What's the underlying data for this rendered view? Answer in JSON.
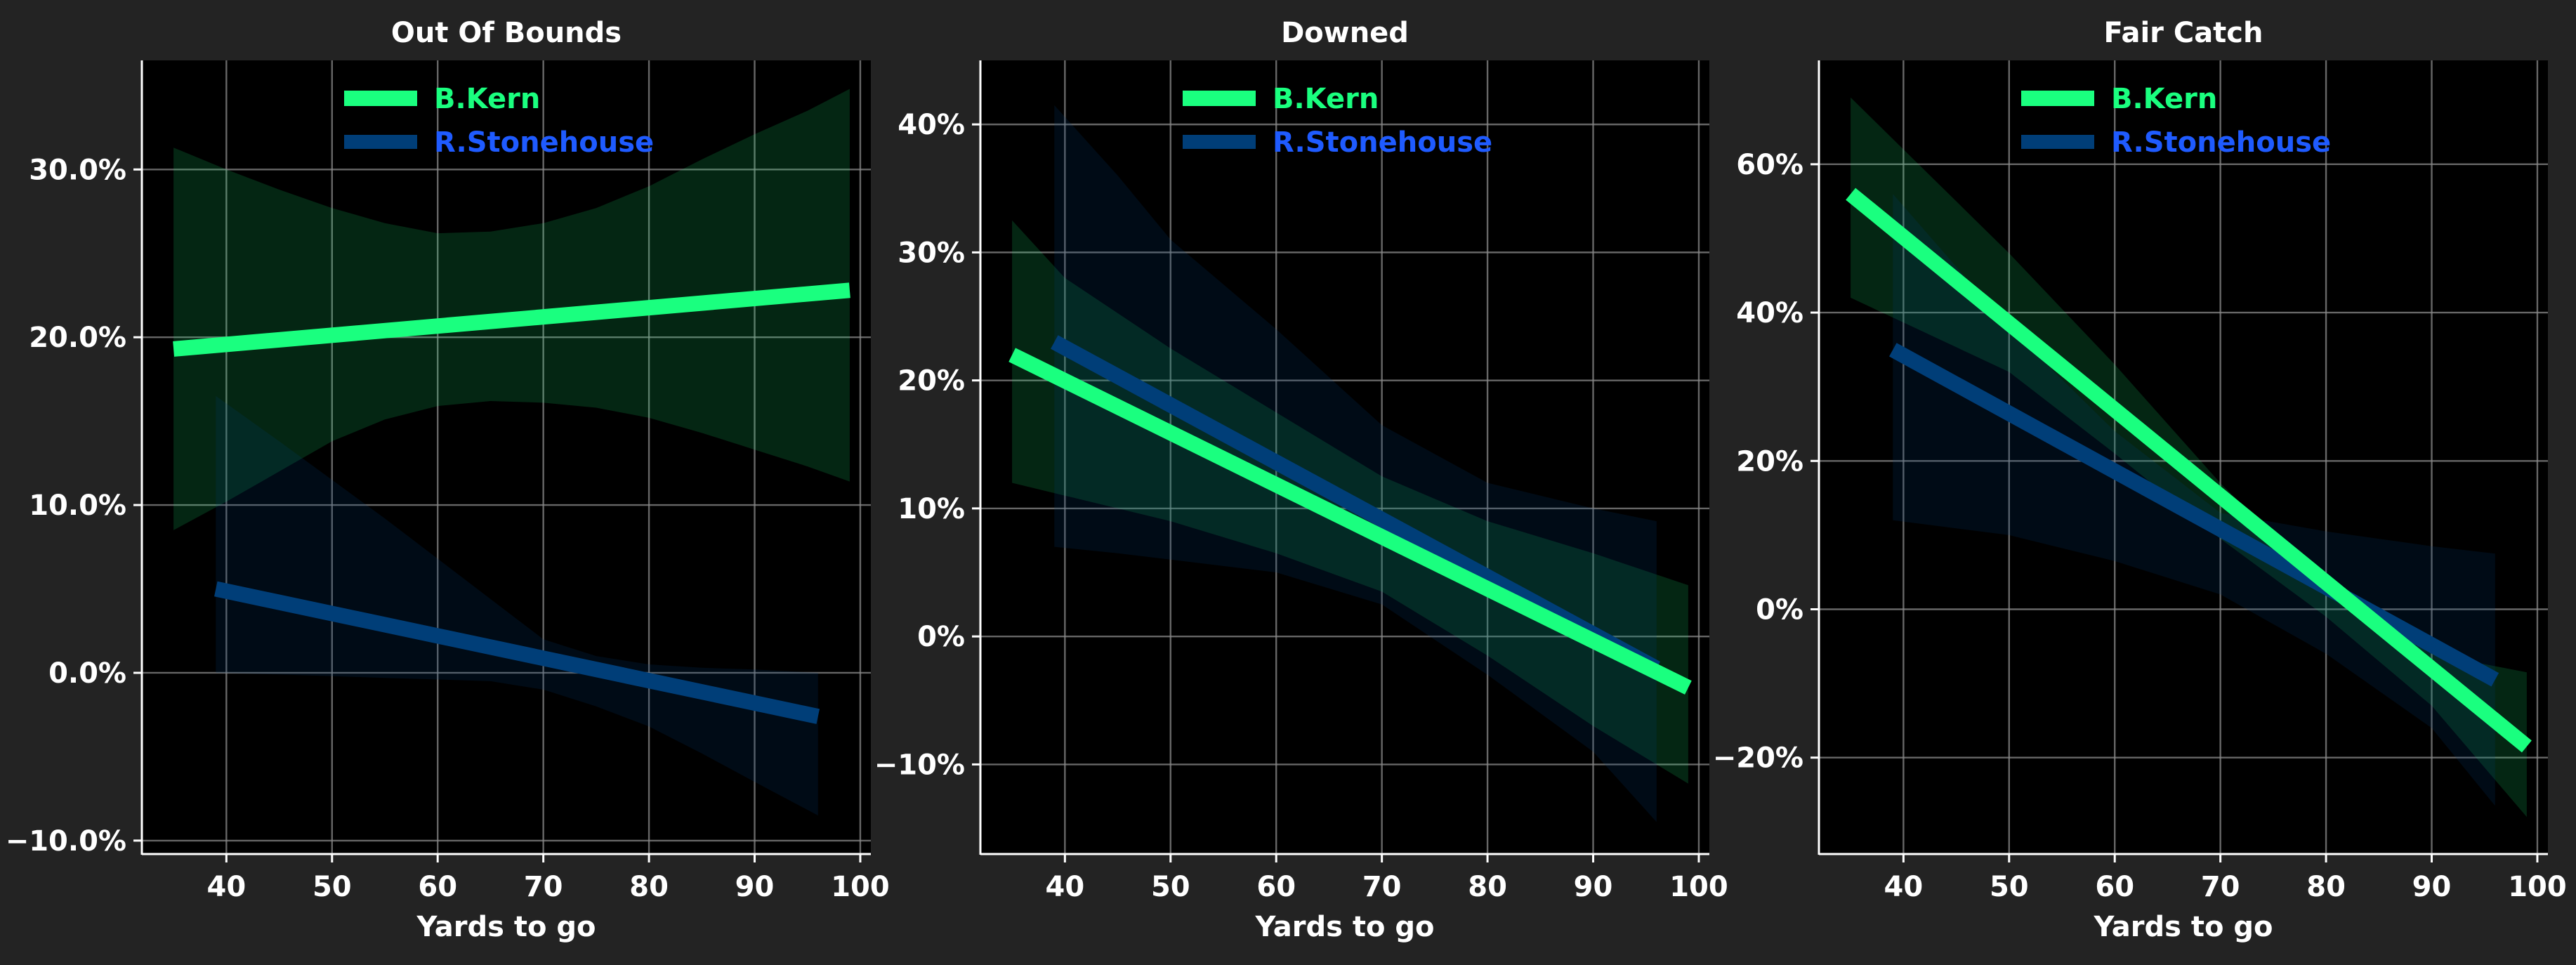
{
  "chart_data": [
    {
      "type": "line",
      "title": "Out Of Bounds",
      "xlabel": "Yards to go",
      "ylabel": "",
      "xlim": [
        32,
        101
      ],
      "ylim": [
        -10.8,
        36.5
      ],
      "xticks": [
        40,
        50,
        60,
        70,
        80,
        90,
        100
      ],
      "yticks": [
        -10,
        0,
        10,
        20,
        30
      ],
      "ytick_labels": [
        "−10.0%",
        "0.0%",
        "10.0%",
        "20.0%",
        "30.0%"
      ],
      "grid": true,
      "legend": "top-center",
      "series": [
        {
          "name": "B.Kern",
          "color": "#1aff7f",
          "x": [
            35,
            99
          ],
          "y": [
            19.3,
            22.8
          ],
          "band": {
            "x": [
              35,
              40,
              45,
              50,
              55,
              60,
              65,
              70,
              75,
              80,
              85,
              90,
              95,
              99
            ],
            "upper": [
              31.3,
              30.0,
              28.8,
              27.7,
              26.8,
              26.2,
              26.3,
              26.8,
              27.7,
              29.0,
              30.6,
              32.1,
              33.5,
              34.8
            ],
            "lower": [
              8.5,
              10.2,
              12.0,
              13.8,
              15.1,
              15.9,
              16.2,
              16.1,
              15.8,
              15.2,
              14.3,
              13.3,
              12.3,
              11.4
            ]
          }
        },
        {
          "name": "R.Stonehouse",
          "color": "#003e78",
          "label_color": "#1f5bff",
          "x": [
            39,
            96
          ],
          "y": [
            5.0,
            -2.6
          ],
          "band": {
            "x": [
              39,
              45,
              50,
              55,
              60,
              65,
              70,
              75,
              80,
              85,
              90,
              96
            ],
            "upper": [
              16.5,
              13.8,
              11.5,
              9.2,
              6.8,
              4.4,
              2.0,
              1.0,
              0.5,
              0.3,
              0.2,
              0.0
            ],
            "lower": [
              0.0,
              -0.1,
              -0.2,
              -0.3,
              -0.4,
              -0.5,
              -1.0,
              -2.0,
              -3.2,
              -4.8,
              -6.5,
              -8.5
            ]
          }
        }
      ]
    },
    {
      "type": "line",
      "title": "Downed",
      "xlabel": "Yards to go",
      "ylabel": "",
      "xlim": [
        32,
        101
      ],
      "ylim": [
        -17,
        45
      ],
      "xticks": [
        40,
        50,
        60,
        70,
        80,
        90,
        100
      ],
      "yticks": [
        -10,
        0,
        10,
        20,
        30,
        40
      ],
      "ytick_labels": [
        "−10%",
        "0%",
        "10%",
        "20%",
        "30%",
        "40%"
      ],
      "grid": true,
      "legend": "top-center",
      "series": [
        {
          "name": "B.Kern",
          "color": "#1aff7f",
          "x": [
            35,
            99
          ],
          "y": [
            22.0,
            -4.0
          ],
          "band": {
            "x": [
              35,
              40,
              50,
              60,
              70,
              80,
              90,
              99
            ],
            "upper": [
              32.5,
              28.0,
              22.5,
              17.5,
              12.5,
              9.0,
              6.5,
              4.0
            ],
            "lower": [
              12.0,
              11.0,
              9.0,
              6.5,
              3.5,
              -1.5,
              -7.0,
              -11.5
            ]
          }
        },
        {
          "name": "R.Stonehouse",
          "color": "#003e78",
          "label_color": "#1f5bff",
          "x": [
            39,
            96
          ],
          "y": [
            23.0,
            -2.5
          ],
          "band": {
            "x": [
              39,
              45,
              50,
              60,
              70,
              80,
              90,
              96
            ],
            "upper": [
              41.5,
              36.0,
              31.0,
              24.0,
              16.5,
              12.0,
              10.0,
              9.0
            ],
            "lower": [
              7.0,
              6.5,
              6.0,
              5.0,
              2.5,
              -3.0,
              -9.0,
              -14.5
            ]
          }
        }
      ]
    },
    {
      "type": "line",
      "title": "Fair Catch",
      "xlabel": "Yards to go",
      "ylabel": "",
      "xlim": [
        32,
        101
      ],
      "ylim": [
        -33,
        74
      ],
      "xticks": [
        40,
        50,
        60,
        70,
        80,
        90,
        100
      ],
      "yticks": [
        -20,
        0,
        20,
        40,
        60
      ],
      "ytick_labels": [
        "−20%",
        "0%",
        "20%",
        "40%",
        "60%"
      ],
      "grid": true,
      "legend": "top-center",
      "series": [
        {
          "name": "B.Kern",
          "color": "#1aff7f",
          "x": [
            35,
            99
          ],
          "y": [
            56.0,
            -18.5
          ],
          "band": {
            "x": [
              35,
              50,
              60,
              70,
              80,
              90,
              99
            ],
            "upper": [
              69.0,
              48.0,
              33.0,
              17.0,
              3.0,
              -6.0,
              -8.5
            ],
            "lower": [
              42.0,
              32.0,
              21.0,
              9.5,
              -1.0,
              -13.0,
              -28.0
            ]
          }
        },
        {
          "name": "R.Stonehouse",
          "color": "#003e78",
          "label_color": "#1f5bff",
          "x": [
            39,
            96
          ],
          "y": [
            35.0,
            -9.5
          ],
          "band": {
            "x": [
              39,
              50,
              60,
              70,
              80,
              90,
              96
            ],
            "upper": [
              56.0,
              38.0,
              24.0,
              13.0,
              10.5,
              8.5,
              7.5
            ],
            "lower": [
              12.0,
              10.0,
              6.5,
              2.0,
              -6.0,
              -16.0,
              -26.5
            ]
          }
        }
      ]
    }
  ]
}
